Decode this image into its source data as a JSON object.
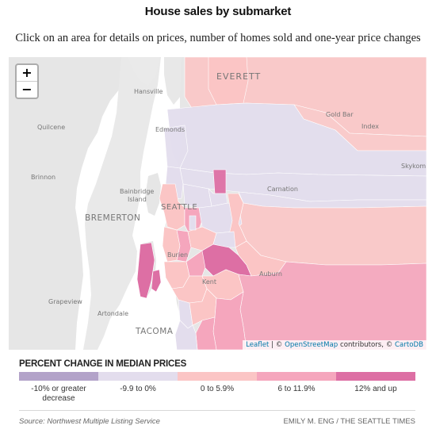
{
  "title": "House sales by submarket",
  "subtitle": "Click on an area for details on prices, number of homes sold and one-year price changes",
  "map": {
    "zoom_in": "+",
    "zoom_out": "−",
    "attribution": {
      "leaflet": "Leaflet",
      "sep": " | © ",
      "osm": "OpenStreetMap",
      "contributors": " contributors, © ",
      "carto": "CartoDB"
    },
    "place_labels": {
      "everett": "EVERETT",
      "hansville": "Hansville",
      "quilcene": "Quilcene",
      "brinnon": "Brinnon",
      "bainbridge": "Bainbridge",
      "island": "Island",
      "bremerton": "BREMERTON",
      "seattle": "SEATTLE",
      "edmonds": "Edmonds",
      "gold_bar": "Gold Bar",
      "index": "Index",
      "skykomish": "Skykomish",
      "carnation": "Carnation",
      "burien": "Burien",
      "kent": "Kent",
      "auburn": "Auburn",
      "grapeview": "Grapeview",
      "artondale": "Artondale",
      "tacoma": "TACOMA"
    },
    "colors": {
      "water": "#ffffff",
      "land": "#e6e6e6",
      "purple_dark": "#b3a3c9",
      "purple_light": "#e3dded",
      "pink_light": "#fbc5c5",
      "pink_mid": "#f5a6bd",
      "pink_dark": "#dd6fa4"
    }
  },
  "legend": {
    "title": "PERCENT CHANGE IN MEDIAN PRICES",
    "items": [
      {
        "label_1": "-10% or greater",
        "label_2": "decrease",
        "color": "#b3a3c9"
      },
      {
        "label_1": "-9.9 to 0%",
        "label_2": "",
        "color": "#e3dded"
      },
      {
        "label_1": "0 to 5.9%",
        "label_2": "",
        "color": "#fbc5c5"
      },
      {
        "label_1": "6 to 11.9%",
        "label_2": "",
        "color": "#f5a6bd"
      },
      {
        "label_1": "12% and up",
        "label_2": "",
        "color": "#dd6fa4"
      }
    ]
  },
  "footer": {
    "source": "Source: Northwest Multiple Listing Service",
    "credit": "EMILY M. ENG / THE SEATTLE TIMES"
  }
}
